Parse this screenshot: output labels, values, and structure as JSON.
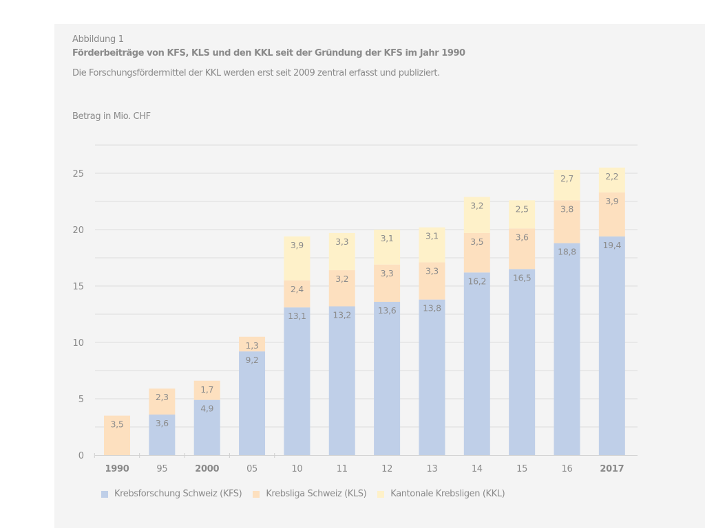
{
  "figure": {
    "label": "Abbildung 1",
    "title": "Förderbeiträge von KFS, KLS und den KKL seit der Gründung der KFS im Jahr 1990",
    "subtitle": "Die Forschungsfördermittel der KKL werden erst seit 2009 zentral erfasst und publiziert."
  },
  "colors": {
    "panel_bg": "#f4f4f4",
    "text": "#8a8a8a",
    "grid": "#dcdcdc",
    "kfs": "#bfcfe8",
    "kls": "#fde0bf",
    "kkl": "#fef1c9"
  },
  "chart_data": {
    "type": "bar",
    "stacked": true,
    "title": "Förderbeiträge von KFS, KLS und den KKL seit der Gründung der KFS im Jahr 1990",
    "ylabel": "Betrag in Mio. CHF",
    "xlabel": "",
    "ylim": [
      0,
      27.5
    ],
    "yticks": [
      0,
      5,
      10,
      15,
      20,
      25
    ],
    "grid": true,
    "grid_step": 2.5,
    "legend_position": "bottom",
    "categories": [
      "1990",
      "95",
      "2000",
      "05",
      "10",
      "11",
      "12",
      "13",
      "14",
      "15",
      "16",
      "2017"
    ],
    "bold_categories": [
      "1990",
      "2000",
      "2017"
    ],
    "series": [
      {
        "name": "Krebsforschung Schweiz (KFS)",
        "key": "kfs",
        "values": [
          null,
          3.6,
          4.9,
          9.2,
          13.1,
          13.2,
          13.6,
          13.8,
          16.2,
          16.5,
          18.8,
          19.4
        ]
      },
      {
        "name": "Krebsliga Schweiz (KLS)",
        "key": "kls",
        "values": [
          3.5,
          2.3,
          1.7,
          1.3,
          2.4,
          3.2,
          3.3,
          3.3,
          3.5,
          3.6,
          3.8,
          3.9
        ]
      },
      {
        "name": "Kantonale Krebsligen (KKL)",
        "key": "kkl",
        "values": [
          null,
          null,
          null,
          null,
          3.9,
          3.3,
          3.1,
          3.1,
          3.2,
          2.5,
          2.7,
          2.2
        ]
      }
    ]
  }
}
